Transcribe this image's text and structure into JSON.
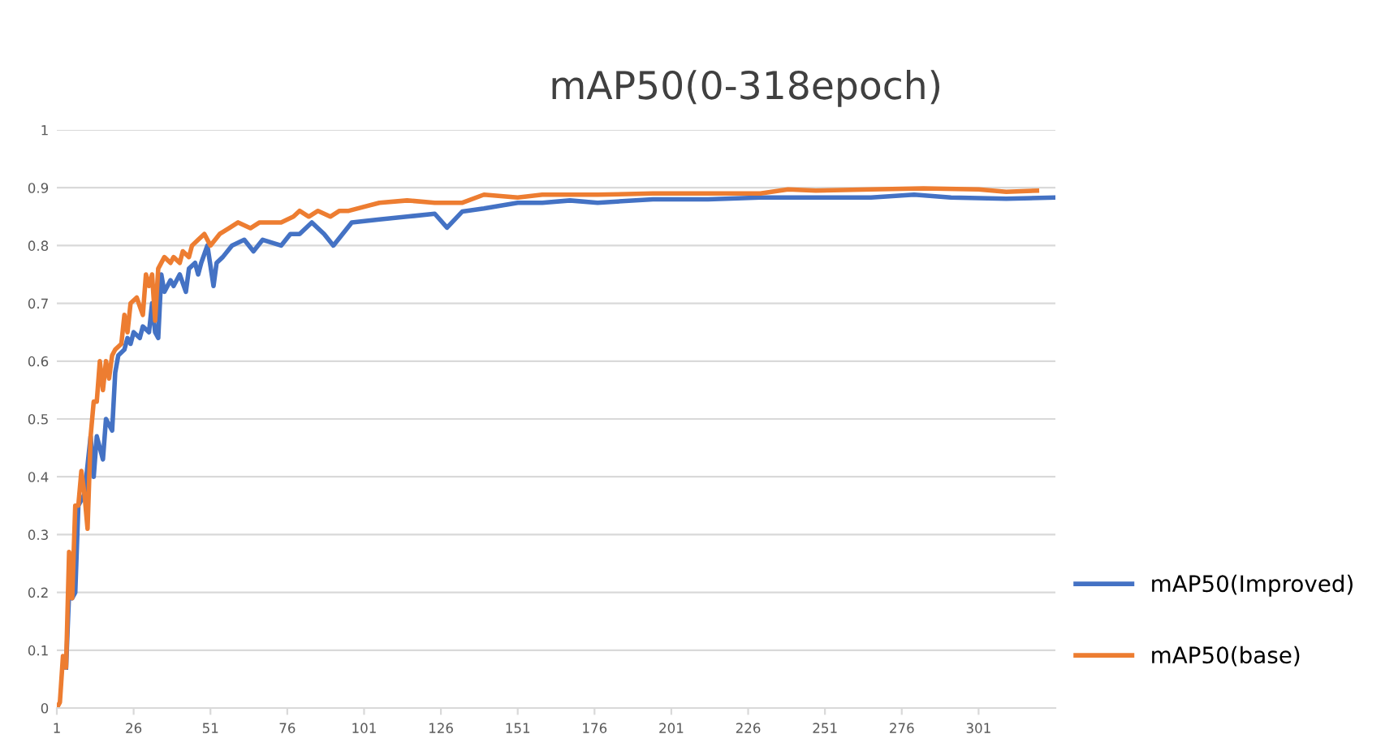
{
  "chart_data": {
    "type": "line",
    "title": "mAP50(0-318epoch)",
    "xlim": [
      1,
      326
    ],
    "xticks": [
      1,
      26,
      51,
      76,
      101,
      126,
      151,
      176,
      201,
      226,
      251,
      276,
      301
    ],
    "ylim": [
      0,
      1
    ],
    "yticks": [
      0,
      0.1,
      0.2,
      0.3,
      0.4,
      0.5,
      0.6,
      0.7,
      0.8,
      0.9,
      1
    ],
    "grid": "y",
    "legend": "right",
    "marker": "none",
    "line_style": "solid",
    "series": [
      {
        "name": "mAP50(Improved)",
        "color": "#4472c4",
        "x": [
          4,
          5,
          6,
          7,
          8,
          9,
          10,
          11,
          12,
          13,
          14,
          15,
          16,
          17,
          18,
          19,
          20,
          21,
          23,
          24,
          25,
          26,
          28,
          29,
          31,
          32,
          33,
          34,
          35,
          36,
          38,
          39,
          41,
          43,
          44,
          46,
          47,
          48,
          50,
          52,
          53,
          55,
          58,
          62,
          65,
          68,
          74,
          77,
          80,
          84,
          88,
          91,
          94,
          97,
          106,
          115,
          124,
          128,
          133,
          140,
          151,
          159,
          168,
          177,
          195,
          213,
          230,
          248,
          266,
          280,
          292,
          310,
          326
        ],
        "values": [
          0.07,
          0.2,
          0.19,
          0.2,
          0.35,
          0.36,
          0.37,
          0.42,
          0.47,
          0.4,
          0.47,
          0.45,
          0.43,
          0.5,
          0.49,
          0.48,
          0.58,
          0.61,
          0.62,
          0.64,
          0.63,
          0.65,
          0.64,
          0.66,
          0.65,
          0.7,
          0.65,
          0.64,
          0.75,
          0.72,
          0.74,
          0.73,
          0.75,
          0.72,
          0.76,
          0.77,
          0.75,
          0.77,
          0.8,
          0.73,
          0.77,
          0.78,
          0.8,
          0.81,
          0.79,
          0.81,
          0.8,
          0.82,
          0.82,
          0.84,
          0.82,
          0.8,
          0.82,
          0.84,
          0.845,
          0.85,
          0.855,
          0.831,
          0.859,
          0.864,
          0.874,
          0.874,
          0.878,
          0.874,
          0.88,
          0.88,
          0.883,
          0.883,
          0.883,
          0.888,
          0.883,
          0.881,
          0.883
        ]
      },
      {
        "name": "mAP50(base)",
        "color": "#ed7d31",
        "x": [
          1,
          2,
          3,
          4,
          5,
          6,
          7,
          8,
          9,
          10,
          11,
          12,
          13,
          14,
          15,
          16,
          17,
          18,
          19,
          20,
          22,
          23,
          24,
          25,
          27,
          29,
          30,
          31,
          32,
          33,
          34,
          36,
          38,
          39,
          41,
          42,
          44,
          45,
          47,
          49,
          51,
          54,
          57,
          60,
          64,
          67,
          71,
          74,
          78,
          80,
          83,
          86,
          90,
          93,
          96,
          106,
          115,
          124,
          133,
          140,
          151,
          159,
          168,
          177,
          195,
          213,
          230,
          239,
          248,
          266,
          283,
          301,
          310,
          320
        ],
        "values": [
          0,
          0.01,
          0.09,
          0.07,
          0.27,
          0.19,
          0.35,
          0.35,
          0.41,
          0.37,
          0.31,
          0.47,
          0.53,
          0.53,
          0.6,
          0.55,
          0.6,
          0.57,
          0.61,
          0.62,
          0.63,
          0.68,
          0.65,
          0.7,
          0.71,
          0.68,
          0.75,
          0.73,
          0.75,
          0.67,
          0.76,
          0.78,
          0.77,
          0.78,
          0.77,
          0.79,
          0.78,
          0.8,
          0.81,
          0.82,
          0.8,
          0.82,
          0.83,
          0.84,
          0.83,
          0.84,
          0.84,
          0.84,
          0.85,
          0.86,
          0.85,
          0.86,
          0.85,
          0.86,
          0.86,
          0.874,
          0.878,
          0.874,
          0.874,
          0.888,
          0.883,
          0.888,
          0.888,
          0.888,
          0.89,
          0.89,
          0.89,
          0.897,
          0.895,
          0.897,
          0.899,
          0.897,
          0.893,
          0.895
        ]
      }
    ]
  }
}
